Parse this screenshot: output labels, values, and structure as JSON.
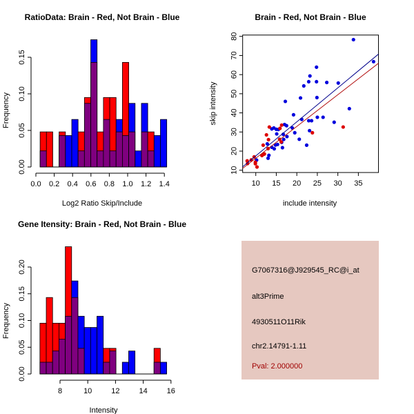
{
  "colors": {
    "red": "#ff0000",
    "blue": "#0000ff",
    "overlap": "#7f007f",
    "panel": "#e6c8c0",
    "pval": "#a00000"
  },
  "chart_data": [
    {
      "type": "bar",
      "title": "RatioData: Brain - Red, Not Brain - Blue",
      "xlabel": "Log2 Ratio Skip/Include",
      "ylabel": "Frequency",
      "bin_start": 0.046,
      "bin_width": 0.069,
      "xticks": [
        "0.0",
        "0.2",
        "0.4",
        "0.6",
        "0.8",
        "1.0",
        "1.2",
        "1.4"
      ],
      "yticks": [
        "0.00",
        "0.05",
        "0.10",
        "0.15"
      ],
      "series": [
        {
          "name": "Brain",
          "color": "red",
          "values": [
            0.048,
            0.048,
            0,
            0.048,
            0,
            0,
            0.048,
            0.095,
            0.143,
            0.048,
            0.095,
            0.095,
            0.048,
            0.143,
            0.048,
            0,
            0.048,
            0.048,
            0,
            0
          ]
        },
        {
          "name": "Not Brain",
          "color": "blue",
          "values": [
            0.022,
            0,
            0,
            0.043,
            0.043,
            0.065,
            0.022,
            0.087,
            0.174,
            0.022,
            0.065,
            0.022,
            0.065,
            0.043,
            0.087,
            0.022,
            0.087,
            0.022,
            0.043,
            0.065
          ]
        }
      ]
    },
    {
      "type": "scatter",
      "title": "Brain - Red, Not Brain - Blue",
      "xlabel": "include intensity",
      "ylabel": "skip intensity",
      "xlim": [
        6.8,
        39.9
      ],
      "ylim": [
        8.8,
        80.7
      ],
      "xticks": [
        "10",
        "15",
        "20",
        "25",
        "30",
        "35"
      ],
      "yticks": [
        "10",
        "20",
        "30",
        "40",
        "50",
        "60",
        "70",
        "80"
      ],
      "series": [
        {
          "name": "Not Brain",
          "color": "blue",
          "points": [
            [
              33.8,
              78.3
            ],
            [
              38.7,
              66.8
            ],
            [
              24.8,
              63.9
            ],
            [
              23.2,
              59.3
            ],
            [
              22.9,
              56.3
            ],
            [
              24.8,
              56.3
            ],
            [
              27.3,
              55.9
            ],
            [
              30.1,
              55.6
            ],
            [
              21.7,
              54.1
            ],
            [
              24.9,
              48.0
            ],
            [
              20.9,
              47.8
            ],
            [
              17.2,
              46.0
            ],
            [
              32.8,
              42.2
            ],
            [
              19.2,
              39.0
            ],
            [
              21.2,
              36.6
            ],
            [
              22.9,
              35.9
            ],
            [
              23.6,
              35.9
            ],
            [
              25.0,
              37.7
            ],
            [
              26.4,
              37.7
            ],
            [
              29.1,
              35.1
            ],
            [
              18.9,
              32.1
            ],
            [
              17.5,
              33.3
            ],
            [
              17.0,
              33.9
            ],
            [
              14.4,
              32.1
            ],
            [
              13.9,
              31.6
            ],
            [
              15.0,
              31.4
            ],
            [
              15.5,
              31.3
            ],
            [
              23.1,
              30.7
            ],
            [
              19.5,
              29.6
            ],
            [
              16.7,
              28.8
            ],
            [
              15.1,
              29.0
            ],
            [
              17.6,
              27.6
            ],
            [
              16.8,
              26.1
            ],
            [
              20.6,
              26.2
            ],
            [
              16.3,
              24.6
            ],
            [
              12.8,
              23.8
            ],
            [
              15.3,
              23.5
            ],
            [
              14.8,
              23.2
            ],
            [
              22.4,
              23.1
            ],
            [
              14.5,
              21.2
            ],
            [
              16.5,
              21.8
            ],
            [
              13.9,
              22.0
            ],
            [
              13.2,
              17.8
            ],
            [
              13.0,
              16.3
            ],
            [
              10.2,
              15.3
            ]
          ],
          "fit": {
            "slope": 1.78,
            "intercept": -0.3
          }
        },
        {
          "name": "Brain",
          "color": "red",
          "points": [
            [
              7.9,
              14.9
            ],
            [
              8.0,
              13.5
            ],
            [
              8.9,
              15.4
            ],
            [
              9.6,
              17.0
            ],
            [
              9.9,
              14.2
            ],
            [
              9.9,
              13.4
            ],
            [
              10.3,
              11.7
            ],
            [
              11.8,
              23.1
            ],
            [
              12.6,
              28.5
            ],
            [
              13.3,
              32.6
            ],
            [
              13.1,
              26.0
            ],
            [
              13.0,
              21.3
            ],
            [
              11.9,
              18.3
            ],
            [
              11.5,
              17.7
            ],
            [
              12.1,
              18.5
            ],
            [
              15.8,
              26.2
            ],
            [
              15.9,
              31.9
            ],
            [
              16.3,
              33.6
            ],
            [
              16.2,
              24.8
            ],
            [
              23.8,
              29.6
            ],
            [
              31.3,
              32.6
            ]
          ],
          "fit": {
            "slope": 1.66,
            "intercept": -0.3
          }
        }
      ]
    },
    {
      "type": "bar",
      "title": "Gene Itensity: Brain - Red, Not Brain - Blue",
      "xlabel": "Intensity",
      "ylabel": "Frequency",
      "bin_start": 6.55,
      "bin_width": 0.457,
      "xticks": [
        "8",
        "10",
        "12",
        "14",
        "16"
      ],
      "yticks": [
        "0.00",
        "0.05",
        "0.10",
        "0.15",
        "0.20"
      ],
      "series": [
        {
          "name": "Brain",
          "color": "red",
          "values": [
            0.095,
            0.143,
            0.095,
            0.095,
            0.238,
            0.143,
            0.048,
            0,
            0,
            0,
            0.048,
            0.048,
            0,
            0,
            0,
            0,
            0,
            0,
            0.048,
            0
          ]
        },
        {
          "name": "Not Brain",
          "color": "blue",
          "values": [
            0.022,
            0.022,
            0.043,
            0.065,
            0.108,
            0.174,
            0.108,
            0.087,
            0.087,
            0.108,
            0.022,
            0.043,
            0,
            0.022,
            0.043,
            0,
            0,
            0,
            0.022,
            0.022
          ]
        }
      ]
    }
  ],
  "info": {
    "probe": "G7067316@J929545_RC@i_at",
    "type": "alt3Prime",
    "gene": "4930511O11Rik",
    "location": "chr2.14791-1.11",
    "pval": "Pval: 2.000000"
  }
}
